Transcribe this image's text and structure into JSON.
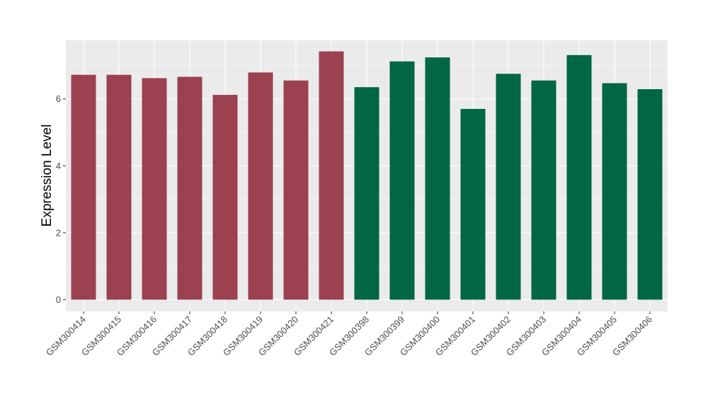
{
  "chart_data": {
    "type": "bar",
    "title": "",
    "xlabel": "",
    "ylabel": "Expression Level",
    "ylim": [
      -0.35,
      7.75
    ],
    "yticks": [
      0,
      2,
      4,
      6
    ],
    "grid": true,
    "legend": "none",
    "categories": [
      "GSM300414",
      "GSM300415",
      "GSM300416",
      "GSM300417",
      "GSM300418",
      "GSM300419",
      "GSM300420",
      "GSM300421",
      "GSM300398",
      "GSM300399",
      "GSM300400",
      "GSM300401",
      "GSM300402",
      "GSM300403",
      "GSM300404",
      "GSM300405",
      "GSM300406"
    ],
    "values": [
      6.72,
      6.72,
      6.62,
      6.66,
      6.12,
      6.79,
      6.55,
      7.42,
      6.35,
      7.12,
      7.24,
      5.7,
      6.75,
      6.55,
      7.31,
      6.47,
      6.29
    ],
    "groups": [
      0,
      0,
      0,
      0,
      0,
      0,
      0,
      0,
      1,
      1,
      1,
      1,
      1,
      1,
      1,
      1,
      1
    ],
    "colors": [
      "#9b4150",
      "#006644"
    ]
  }
}
